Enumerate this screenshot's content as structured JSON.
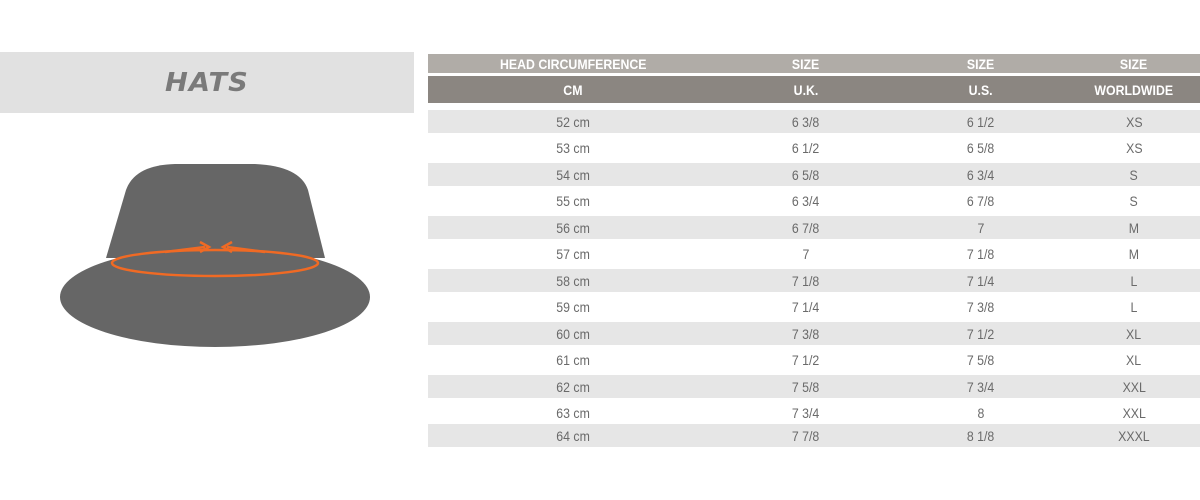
{
  "title": "HATS",
  "colors": {
    "hat": "#666666",
    "measure_line": "#f06a24",
    "header_top": "#b0aca7",
    "header_bottom": "#8b8681",
    "row_shade": "#e6e6e6"
  },
  "hat_icon": "bucket-hat-with-measure-arrows",
  "table": {
    "header_top": [
      "HEAD CIRCUMFERENCE",
      "SIZE",
      "SIZE",
      "SIZE"
    ],
    "header_bottom": [
      "CM",
      "U.K.",
      "U.S.",
      "WORLDWIDE"
    ],
    "rows": [
      [
        "52 cm",
        "6 3/8",
        "6 1/2",
        "XS"
      ],
      [
        "53 cm",
        "6 1/2",
        "6 5/8",
        "XS"
      ],
      [
        "54 cm",
        "6 5/8",
        "6 3/4",
        "S"
      ],
      [
        "55 cm",
        "6 3/4",
        "6 7/8",
        "S"
      ],
      [
        "56  cm",
        "6 7/8",
        "7",
        "M"
      ],
      [
        "57 cm",
        "7",
        "7 1/8",
        "M"
      ],
      [
        "58 cm",
        "7 1/8",
        "7 1/4",
        "L"
      ],
      [
        "59 cm",
        "7 1/4",
        "7 3/8",
        "L"
      ],
      [
        "60 cm",
        "7 3/8",
        "7 1/2",
        "XL"
      ],
      [
        "61 cm",
        "7 1/2",
        "7 5/8",
        "XL"
      ],
      [
        "62 cm",
        "7 5/8",
        "7 3/4",
        "XXL"
      ],
      [
        "63 cm",
        "7 3/4",
        "8",
        "XXL"
      ],
      [
        "64 cm",
        "7 7/8",
        "8 1/8",
        "XXXL"
      ]
    ]
  }
}
